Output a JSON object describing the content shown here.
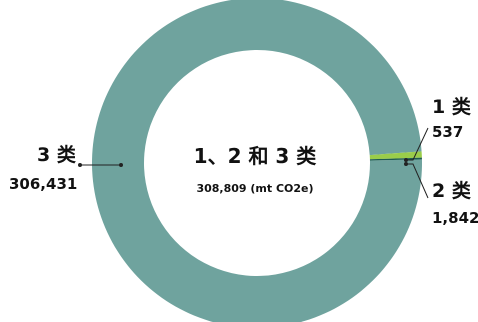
{
  "chart_data": {
    "type": "pie",
    "categories": [
      "3 类",
      "1 类",
      "2 类"
    ],
    "values": [
      306431,
      537,
      1842
    ],
    "value_labels": [
      "306,431",
      "537",
      "1,842"
    ],
    "colors": [
      "#6fa39e",
      "#1f5c4f",
      "#9acd4a"
    ],
    "center_title": "1、2 和 3 类",
    "center_subtitle": "308,809 (mt CO2e)"
  }
}
